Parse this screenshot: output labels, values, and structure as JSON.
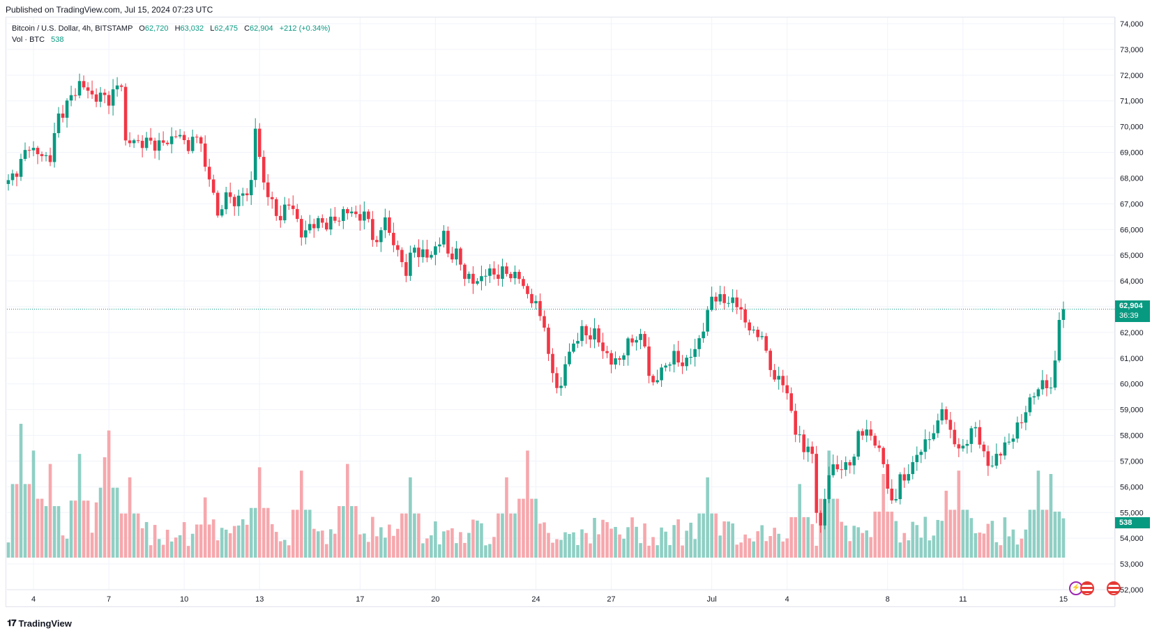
{
  "header": {
    "published": "Published on TradingView.com, Jul 15, 2024 07:23 UTC"
  },
  "legend": {
    "symbol": "Bitcoin / U.S. Dollar, 4h, BITSTAMP",
    "open_label": "O",
    "open": "62,720",
    "high_label": "H",
    "high": "63,032",
    "low_label": "L",
    "low": "62,475",
    "close_label": "C",
    "close": "62,904",
    "change": "+212 (+0.34%)",
    "vol_label": "Vol · BTC",
    "vol_value": "538"
  },
  "price_tag": {
    "price": "62,904",
    "countdown": "36:39"
  },
  "volume_tag": {
    "value": "538"
  },
  "footer": {
    "brand": "TradingView"
  },
  "colors": {
    "up": "#089981",
    "down": "#f23645",
    "up_vol": "#8fcfc4",
    "down_vol": "#f6a8ad",
    "grid": "#f0f3fa"
  },
  "icons": [
    "lightning-event-icon",
    "us-flag-event-icon",
    "us-flag-event-icon"
  ],
  "chart_data": {
    "type": "candlestick",
    "title": "Bitcoin / U.S. Dollar, 4h, BITSTAMP",
    "interval": "4h",
    "ylim": [
      51700,
      74200
    ],
    "y_ticks": [
      "74,000",
      "73,000",
      "72,000",
      "71,000",
      "70,000",
      "69,000",
      "68,000",
      "67,000",
      "66,000",
      "65,000",
      "64,000",
      "63,000",
      "62,000",
      "61,000",
      "60,000",
      "59,000",
      "58,000",
      "57,000",
      "56,000",
      "55,000",
      "54,000",
      "53,000",
      "52,000"
    ],
    "x_ticks": [
      {
        "label": "4",
        "bar": 6
      },
      {
        "label": "7",
        "bar": 24
      },
      {
        "label": "10",
        "bar": 42
      },
      {
        "label": "13",
        "bar": 60
      },
      {
        "label": "17",
        "bar": 84
      },
      {
        "label": "20",
        "bar": 102
      },
      {
        "label": "24",
        "bar": 126
      },
      {
        "label": "27",
        "bar": 144
      },
      {
        "label": "Jul",
        "bar": 168
      },
      {
        "label": "4",
        "bar": 186
      },
      {
        "label": "8",
        "bar": 210
      },
      {
        "label": "11",
        "bar": 228
      },
      {
        "label": "15",
        "bar": 252
      }
    ],
    "anchors": [
      [
        0,
        67800
      ],
      [
        3,
        68600
      ],
      [
        5,
        69300
      ],
      [
        7,
        68900
      ],
      [
        10,
        68800
      ],
      [
        12,
        70400
      ],
      [
        15,
        71100
      ],
      [
        17,
        71700
      ],
      [
        20,
        71200
      ],
      [
        24,
        71100
      ],
      [
        27,
        71700
      ],
      [
        28,
        69400
      ],
      [
        32,
        69400
      ],
      [
        37,
        69300
      ],
      [
        40,
        69700
      ],
      [
        43,
        69300
      ],
      [
        46,
        69600
      ],
      [
        47,
        68300
      ],
      [
        49,
        67500
      ],
      [
        50,
        66500
      ],
      [
        52,
        67300
      ],
      [
        55,
        67100
      ],
      [
        58,
        67800
      ],
      [
        59,
        69900
      ],
      [
        61,
        67800
      ],
      [
        63,
        67000
      ],
      [
        64,
        66500
      ],
      [
        68,
        67000
      ],
      [
        69,
        66300
      ],
      [
        70,
        65700
      ],
      [
        72,
        66200
      ],
      [
        78,
        66300
      ],
      [
        80,
        66700
      ],
      [
        83,
        66600
      ],
      [
        86,
        66400
      ],
      [
        88,
        65300
      ],
      [
        90,
        66600
      ],
      [
        91,
        65800
      ],
      [
        93,
        65100
      ],
      [
        95,
        64400
      ],
      [
        97,
        65300
      ],
      [
        100,
        64900
      ],
      [
        103,
        65500
      ],
      [
        104,
        65800
      ],
      [
        105,
        65100
      ],
      [
        107,
        65000
      ],
      [
        109,
        64300
      ],
      [
        111,
        63900
      ],
      [
        114,
        64300
      ],
      [
        120,
        64300
      ],
      [
        122,
        64100
      ],
      [
        124,
        63500
      ],
      [
        126,
        63000
      ],
      [
        128,
        62400
      ],
      [
        129,
        60900
      ],
      [
        131,
        60000
      ],
      [
        132,
        59800
      ],
      [
        133,
        60800
      ],
      [
        135,
        61600
      ],
      [
        137,
        62000
      ],
      [
        140,
        61900
      ],
      [
        142,
        61400
      ],
      [
        144,
        60800
      ],
      [
        146,
        61000
      ],
      [
        148,
        61500
      ],
      [
        150,
        61900
      ],
      [
        152,
        61500
      ],
      [
        153,
        60400
      ],
      [
        154,
        60000
      ],
      [
        155,
        60200
      ],
      [
        157,
        60800
      ],
      [
        159,
        61000
      ],
      [
        162,
        60800
      ],
      [
        164,
        61400
      ],
      [
        166,
        62100
      ],
      [
        167,
        62700
      ],
      [
        168,
        63500
      ],
      [
        170,
        63200
      ],
      [
        172,
        63300
      ],
      [
        175,
        62900
      ],
      [
        176,
        62400
      ],
      [
        178,
        61900
      ],
      [
        180,
        62000
      ],
      [
        181,
        61000
      ],
      [
        183,
        60300
      ],
      [
        185,
        60000
      ],
      [
        186,
        59600
      ],
      [
        187,
        59000
      ],
      [
        188,
        58100
      ],
      [
        189,
        57800
      ],
      [
        190,
        57500
      ],
      [
        191,
        57700
      ],
      [
        192,
        57000
      ],
      [
        193,
        55100
      ],
      [
        194,
        54600
      ],
      [
        195,
        55400
      ],
      [
        196,
        56500
      ],
      [
        197,
        56800
      ],
      [
        200,
        56700
      ],
      [
        202,
        57300
      ],
      [
        203,
        57900
      ],
      [
        205,
        58300
      ],
      [
        206,
        57900
      ],
      [
        208,
        57400
      ],
      [
        209,
        57000
      ],
      [
        210,
        56000
      ],
      [
        211,
        55200
      ],
      [
        212,
        55700
      ],
      [
        213,
        56600
      ],
      [
        214,
        56000
      ],
      [
        215,
        56600
      ],
      [
        216,
        57000
      ],
      [
        218,
        57400
      ],
      [
        220,
        58000
      ],
      [
        222,
        58300
      ],
      [
        223,
        59200
      ],
      [
        224,
        58700
      ],
      [
        225,
        58000
      ],
      [
        227,
        57500
      ],
      [
        229,
        57700
      ],
      [
        231,
        58500
      ],
      [
        232,
        57700
      ],
      [
        233,
        57100
      ],
      [
        235,
        56900
      ],
      [
        237,
        57300
      ],
      [
        238,
        57700
      ],
      [
        240,
        57900
      ],
      [
        241,
        58300
      ],
      [
        242,
        58700
      ],
      [
        244,
        59200
      ],
      [
        245,
        59700
      ],
      [
        247,
        60000
      ],
      [
        248,
        59900
      ],
      [
        249,
        59800
      ],
      [
        250,
        61000
      ],
      [
        251,
        62500
      ],
      [
        252,
        62904
      ]
    ],
    "volume_peaks": [
      [
        3,
        4
      ],
      [
        6,
        3.2
      ],
      [
        10,
        2.8
      ],
      [
        17,
        3.1
      ],
      [
        23,
        3
      ],
      [
        24,
        3.8
      ],
      [
        29,
        2.4
      ],
      [
        47,
        1.8
      ],
      [
        60,
        2.7
      ],
      [
        70,
        2.6
      ],
      [
        81,
        2.8
      ],
      [
        96,
        2.4
      ],
      [
        119,
        2.4
      ],
      [
        124,
        3.2
      ],
      [
        167,
        2.4
      ],
      [
        189,
        2.2
      ],
      [
        196,
        3.2
      ],
      [
        209,
        2.5
      ],
      [
        224,
        2
      ],
      [
        227,
        2.6
      ],
      [
        246,
        2.6
      ],
      [
        249,
        2.5
      ]
    ],
    "bars": 253
  }
}
